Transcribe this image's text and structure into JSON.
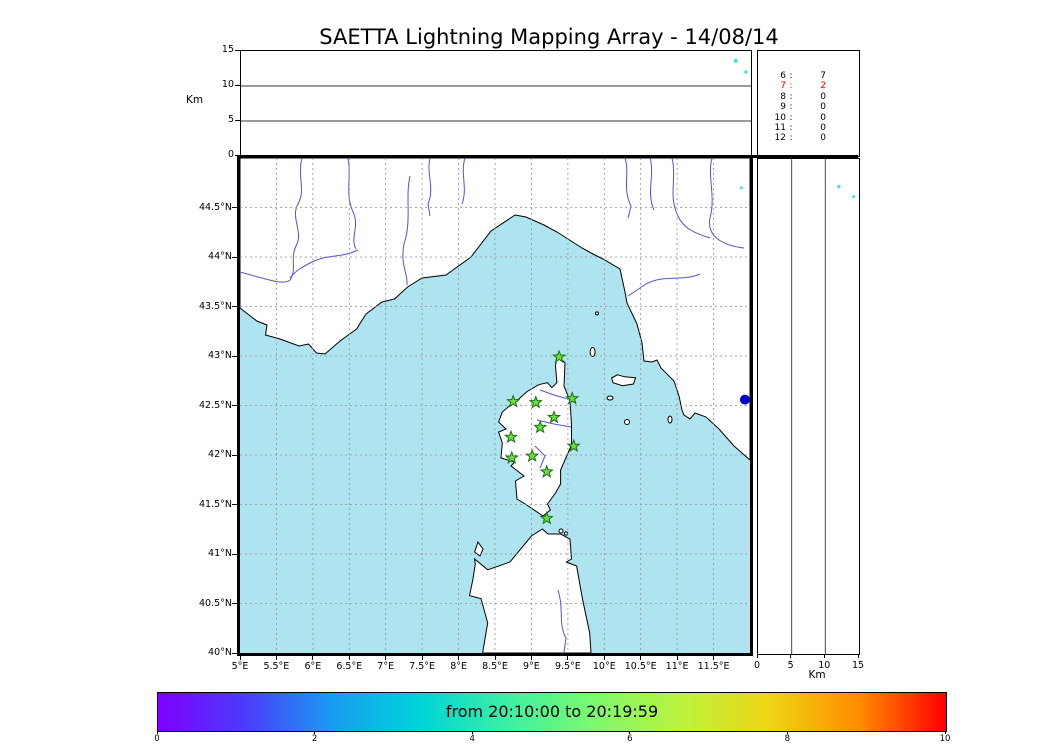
{
  "title": "SAETTA Lightning Mapping Array - 14/08/14",
  "alt_panel": {
    "axis_label": "Km",
    "ticks": [
      0,
      5,
      10,
      15
    ],
    "gridlines_km": [
      5,
      10
    ],
    "points": [
      {
        "lon": 11.79,
        "alt_km": 13.6,
        "r": 2.0,
        "color": "#40e0e8"
      },
      {
        "lon": 11.93,
        "alt_km": 12.0,
        "r": 1.7,
        "color": "#40e0e8"
      }
    ]
  },
  "stats_box": {
    "separator": ":",
    "rows": [
      {
        "key": "6",
        "value": "7",
        "color": "#000000"
      },
      {
        "key": "7",
        "value": "2",
        "color": "#ff0000"
      },
      {
        "key": "8",
        "value": "0",
        "color": "#000000"
      },
      {
        "key": "9",
        "value": "0",
        "color": "#000000"
      },
      {
        "key": "10",
        "value": "0",
        "color": "#000000"
      },
      {
        "key": "11",
        "value": "0",
        "color": "#000000"
      },
      {
        "key": "12",
        "value": "0",
        "color": "#000000"
      }
    ]
  },
  "map": {
    "sea_color": "#aee4ef",
    "station_color": "#66e040",
    "station_edge_color": "#1e6b10",
    "lat_ticks": [
      {
        "label": "44.5°N",
        "lat": 44.5
      },
      {
        "label": "44°N",
        "lat": 44.0
      },
      {
        "label": "43.5°N",
        "lat": 43.5
      },
      {
        "label": "43°N",
        "lat": 43.0
      },
      {
        "label": "42.5°N",
        "lat": 42.5
      },
      {
        "label": "42°N",
        "lat": 42.0
      },
      {
        "label": "41.5°N",
        "lat": 41.5
      },
      {
        "label": "41°N",
        "lat": 41.0
      },
      {
        "label": "40.5°N",
        "lat": 40.5
      },
      {
        "label": "40°N",
        "lat": 40.0
      }
    ],
    "lon_ticks": [
      {
        "label": "5°E",
        "lon": 5.0
      },
      {
        "label": "5.5°E",
        "lon": 5.5
      },
      {
        "label": "6°E",
        "lon": 6.0
      },
      {
        "label": "6.5°E",
        "lon": 6.5
      },
      {
        "label": "7°E",
        "lon": 7.0
      },
      {
        "label": "7.5°E",
        "lon": 7.5
      },
      {
        "label": "8°E",
        "lon": 8.0
      },
      {
        "label": "8.5°E",
        "lon": 8.5
      },
      {
        "label": "9°E",
        "lon": 9.0
      },
      {
        "label": "9.5°E",
        "lon": 9.5
      },
      {
        "label": "10°E",
        "lon": 10.0
      },
      {
        "label": "10.5°E",
        "lon": 10.5
      },
      {
        "label": "11°E",
        "lon": 11.0
      },
      {
        "label": "11.5°E",
        "lon": 11.5
      }
    ],
    "stations": [
      {
        "lon": 9.38,
        "lat": 42.99
      },
      {
        "lon": 8.75,
        "lat": 42.54
      },
      {
        "lon": 9.06,
        "lat": 42.53
      },
      {
        "lon": 9.56,
        "lat": 42.57
      },
      {
        "lon": 9.31,
        "lat": 42.38
      },
      {
        "lon": 9.12,
        "lat": 42.28
      },
      {
        "lon": 8.72,
        "lat": 42.18
      },
      {
        "lon": 9.58,
        "lat": 42.09
      },
      {
        "lon": 8.73,
        "lat": 41.97
      },
      {
        "lon": 9.01,
        "lat": 41.99
      },
      {
        "lon": 9.21,
        "lat": 41.83
      },
      {
        "lon": 9.21,
        "lat": 41.36
      }
    ],
    "points": [
      {
        "lon": 11.93,
        "lat": 42.56,
        "r": 5.0,
        "color": "#0000cc"
      },
      {
        "lon": 11.88,
        "lat": 44.7,
        "r": 1.5,
        "color": "#40e0e8"
      }
    ]
  },
  "right_panel": {
    "axis_label": "Km",
    "ticks": [
      0,
      5,
      10,
      15
    ],
    "gridlines_km": [
      5,
      10
    ],
    "points": [
      {
        "alt_km": 12.0,
        "lat": 44.72,
        "r": 1.7,
        "color": "#40e0e8"
      },
      {
        "alt_km": 14.2,
        "lat": 44.62,
        "r": 1.5,
        "color": "#40e0e8"
      }
    ]
  },
  "colorbar": {
    "label": "from 20:10:00 to 20:19:59",
    "ticks": [
      "0",
      "2",
      "4",
      "6",
      "8",
      "10"
    ],
    "gradient": [
      "#7f00ff",
      "#4b3cfb",
      "#189df1",
      "#00d4d8",
      "#3cf0a4",
      "#7dfa6c",
      "#bdf23c",
      "#f0d414",
      "#ff8c00",
      "#ff0000"
    ]
  }
}
